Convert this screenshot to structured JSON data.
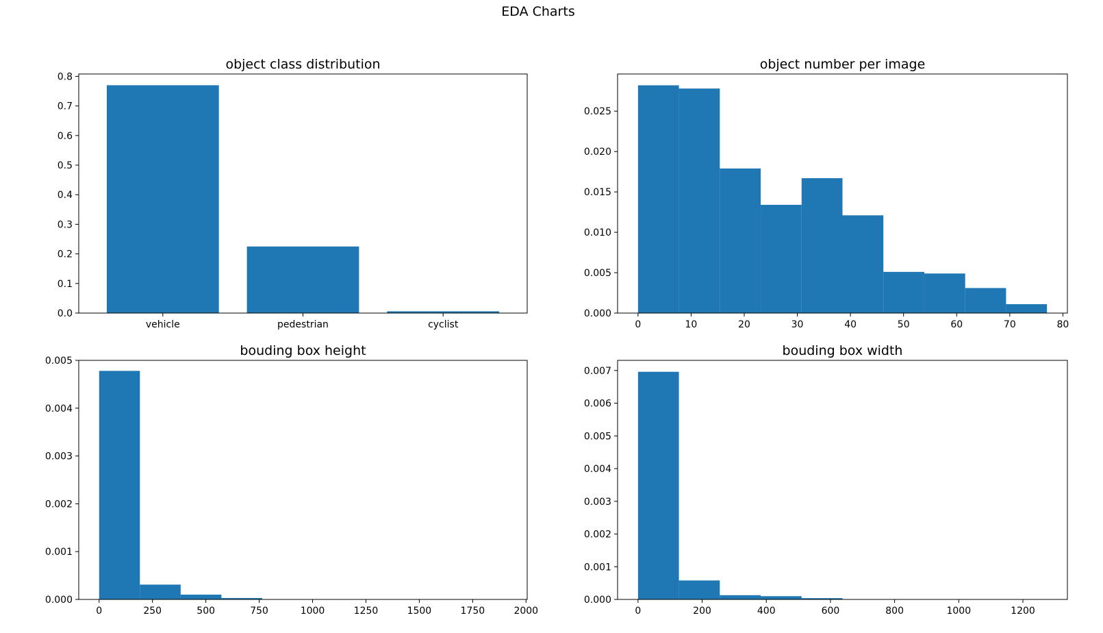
{
  "figure": {
    "title": "EDA Charts"
  },
  "colors": {
    "bar": "#1f77b4",
    "axis": "#000000",
    "background": "#ffffff"
  },
  "chart_data": [
    {
      "type": "bar",
      "title": "object class distribution",
      "xlabel": "",
      "ylabel": "",
      "categories": [
        "vehicle",
        "pedestrian",
        "cyclist"
      ],
      "values": [
        0.77,
        0.225,
        0.006
      ],
      "ylim": [
        0,
        0.808
      ],
      "yticks": [
        0.0,
        0.1,
        0.2,
        0.3,
        0.4,
        0.5,
        0.6,
        0.7,
        0.8
      ],
      "ytick_labels": [
        "0.0",
        "0.1",
        "0.2",
        "0.3",
        "0.4",
        "0.5",
        "0.6",
        "0.7",
        "0.8"
      ],
      "grid": false,
      "legend": "none"
    },
    {
      "type": "bar",
      "subtype": "histogram",
      "title": "object number per image",
      "xlabel": "",
      "ylabel": "",
      "bin_edges": [
        0,
        7.7,
        15.4,
        23.1,
        30.8,
        38.5,
        46.2,
        53.9,
        61.6,
        69.3,
        77
      ],
      "values": [
        0.0282,
        0.0278,
        0.0179,
        0.0134,
        0.0167,
        0.0121,
        0.0051,
        0.0049,
        0.0031,
        0.0011
      ],
      "xlim": [
        -3.85,
        80.85
      ],
      "ylim": [
        0,
        0.0296
      ],
      "xticks": [
        0,
        10,
        20,
        30,
        40,
        50,
        60,
        70,
        80
      ],
      "xtick_labels": [
        "0",
        "10",
        "20",
        "30",
        "40",
        "50",
        "60",
        "70",
        "80"
      ],
      "yticks": [
        0.0,
        0.005,
        0.01,
        0.015,
        0.02,
        0.025
      ],
      "ytick_labels": [
        "0.000",
        "0.005",
        "0.010",
        "0.015",
        "0.020",
        "0.025"
      ],
      "grid": false,
      "legend": "none"
    },
    {
      "type": "bar",
      "subtype": "histogram",
      "title": "bouding box height",
      "xlabel": "",
      "ylabel": "",
      "bin_edges": [
        0,
        191,
        382,
        573,
        764,
        955,
        1146,
        1337,
        1528,
        1719,
        1910
      ],
      "values": [
        0.00478,
        0.00031,
        0.0001,
        3e-05,
        5e-06,
        2e-06,
        1e-06,
        1e-06,
        5e-07,
        5e-07
      ],
      "xlim": [
        -95.5,
        2005.5
      ],
      "ylim": [
        0,
        0.005
      ],
      "xticks": [
        0,
        250,
        500,
        750,
        1000,
        1250,
        1500,
        1750,
        2000
      ],
      "xtick_labels": [
        "0",
        "250",
        "500",
        "750",
        "1000",
        "1250",
        "1500",
        "1750",
        "2000"
      ],
      "yticks": [
        0.0,
        0.001,
        0.002,
        0.003,
        0.004,
        0.005
      ],
      "ytick_labels": [
        "0.000",
        "0.001",
        "0.002",
        "0.003",
        "0.004",
        "0.005"
      ],
      "grid": false,
      "legend": "none"
    },
    {
      "type": "bar",
      "subtype": "histogram",
      "title": "bouding box width",
      "xlabel": "",
      "ylabel": "",
      "bin_edges": [
        0,
        127.5,
        255,
        382.5,
        510,
        637.5,
        765,
        892.5,
        1020,
        1147.5,
        1275
      ],
      "values": [
        0.00696,
        0.00058,
        0.00013,
        0.0001,
        4e-05,
        1e-05,
        3e-06,
        1e-06,
        1e-06,
        5e-07
      ],
      "xlim": [
        -63.75,
        1338.75
      ],
      "ylim": [
        0,
        0.00731
      ],
      "xticks": [
        0,
        200,
        400,
        600,
        800,
        1000,
        1200
      ],
      "xtick_labels": [
        "0",
        "200",
        "400",
        "600",
        "800",
        "1000",
        "1200"
      ],
      "yticks": [
        0.0,
        0.001,
        0.002,
        0.003,
        0.004,
        0.005,
        0.006,
        0.007
      ],
      "ytick_labels": [
        "0.000",
        "0.001",
        "0.002",
        "0.003",
        "0.004",
        "0.005",
        "0.006",
        "0.007"
      ],
      "grid": false,
      "legend": "none"
    }
  ]
}
